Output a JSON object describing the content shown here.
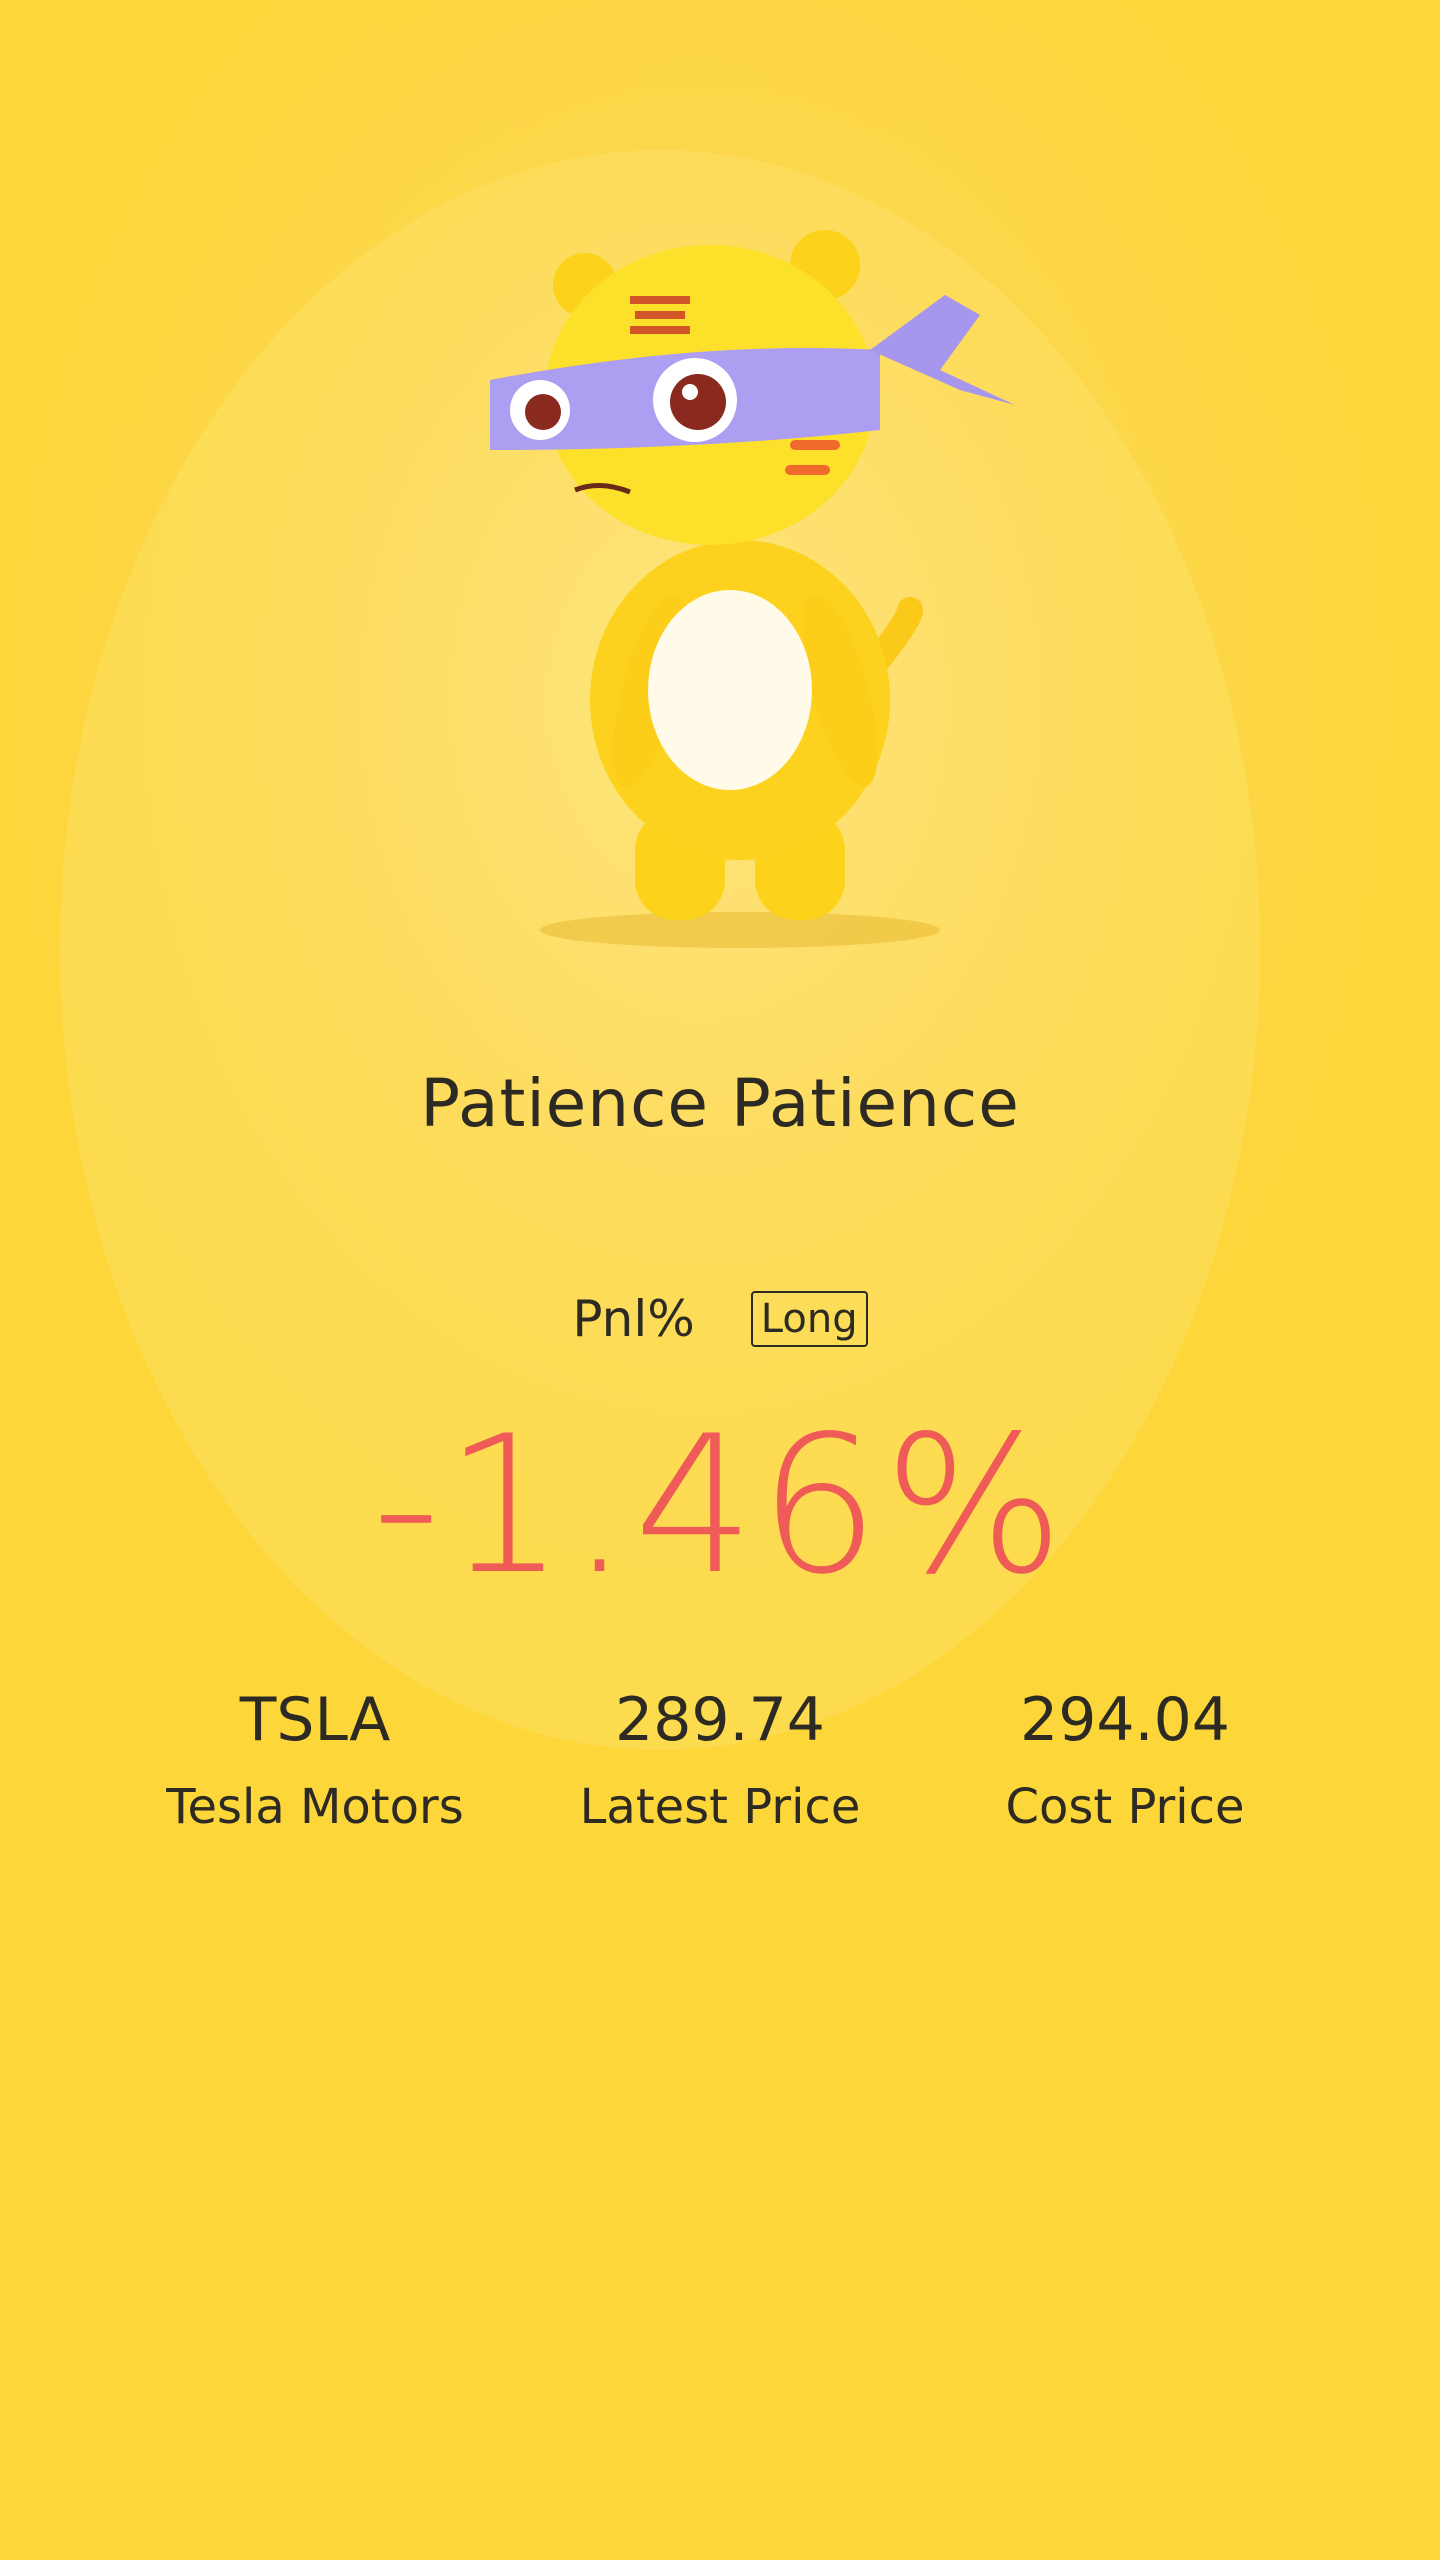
{
  "mascot": {
    "icon": "tiger-mascot-with-blindfold"
  },
  "headline": "Patience Patience",
  "pnl": {
    "label": "Pnl%",
    "direction_badge": "Long",
    "value": "-1.46%",
    "value_color": "#ef5b57"
  },
  "stats": [
    {
      "value": "TSLA",
      "label": "Tesla Motors"
    },
    {
      "value": "289.74",
      "label": "Latest Price"
    },
    {
      "value": "294.04",
      "label": "Cost Price"
    }
  ],
  "colors": {
    "background": "#fdd63a",
    "text": "#2c2a22"
  }
}
